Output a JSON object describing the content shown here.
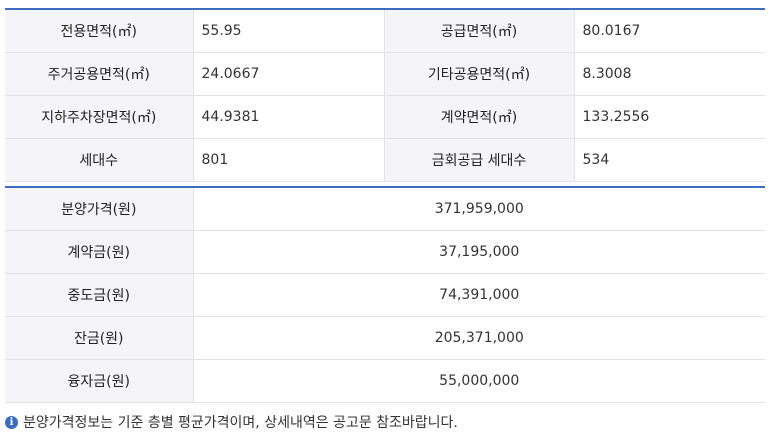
{
  "area": {
    "rows": [
      [
        {
          "label": "전용면적(㎡)",
          "value": "55.95"
        },
        {
          "label": "공급면적(㎡)",
          "value": "80.0167"
        }
      ],
      [
        {
          "label": "주거공용면적(㎡)",
          "value": "24.0667"
        },
        {
          "label": "기타공용면적(㎡)",
          "value": "8.3008"
        }
      ],
      [
        {
          "label": "지하주차장면적(㎡)",
          "value": "44.9381"
        },
        {
          "label": "계약면적(㎡)",
          "value": "133.2556"
        }
      ],
      [
        {
          "label": "세대수",
          "value": "801"
        },
        {
          "label": "금회공급 세대수",
          "value": "534"
        }
      ]
    ]
  },
  "price": {
    "rows": [
      {
        "label": "분양가격(원)",
        "value": "371,959,000"
      },
      {
        "label": "계약금(원)",
        "value": "37,195,000"
      },
      {
        "label": "중도금(원)",
        "value": "74,391,000"
      },
      {
        "label": "잔금(원)",
        "value": "205,371,000"
      },
      {
        "label": "융자금(원)",
        "value": "55,000,000"
      }
    ]
  },
  "note": {
    "icon": "info-icon",
    "icon_glyph": "i",
    "text": "분양가격정보는 기준 층별 평균가격이며, 상세내역은 공고문 참조바랍니다."
  },
  "colors": {
    "accent": "#3a6dc0",
    "label_bg": "#f5f5f7",
    "border": "#e3e3e3"
  }
}
